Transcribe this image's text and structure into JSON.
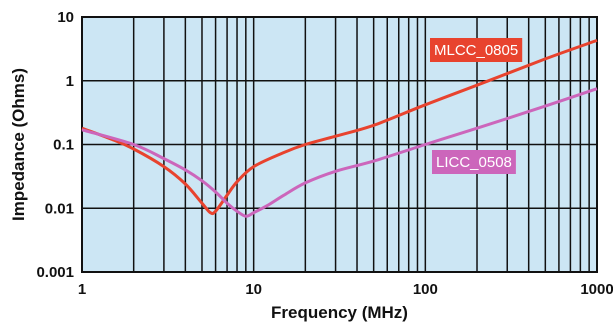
{
  "chart_data": {
    "type": "line",
    "title": "",
    "xlabel": "Frequency (MHz)",
    "ylabel": "Impedance  (Ohms)",
    "xscale": "log",
    "yscale": "log",
    "xlim": [
      1,
      1000
    ],
    "ylim": [
      0.001,
      10
    ],
    "x_ticks": [
      "1",
      "10",
      "100",
      "1000"
    ],
    "y_ticks": [
      "0.001",
      "0.01",
      "0.1",
      "1",
      "10"
    ],
    "grid": true,
    "background": "#cce6f4",
    "series": [
      {
        "name": "MLCC_0805",
        "color": "#e8432e",
        "label_box_color": "#e8432e",
        "points": [
          [
            1,
            0.18
          ],
          [
            1.5,
            0.12
          ],
          [
            2,
            0.085
          ],
          [
            3,
            0.045
          ],
          [
            4,
            0.024
          ],
          [
            5,
            0.012
          ],
          [
            5.6,
            0.0085
          ],
          [
            6,
            0.009
          ],
          [
            7,
            0.016
          ],
          [
            8,
            0.026
          ],
          [
            10,
            0.045
          ],
          [
            15,
            0.075
          ],
          [
            20,
            0.1
          ],
          [
            30,
            0.135
          ],
          [
            50,
            0.2
          ],
          [
            100,
            0.42
          ],
          [
            200,
            0.85
          ],
          [
            500,
            2.2
          ],
          [
            1000,
            4.3
          ]
        ]
      },
      {
        "name": "LICC_0508",
        "color": "#cc66bb",
        "label_box_color": "#cc66bb",
        "points": [
          [
            1,
            0.17
          ],
          [
            2,
            0.1
          ],
          [
            3,
            0.06
          ],
          [
            4,
            0.04
          ],
          [
            5,
            0.027
          ],
          [
            6,
            0.018
          ],
          [
            7,
            0.012
          ],
          [
            8,
            0.009
          ],
          [
            9,
            0.0075
          ],
          [
            10,
            0.0085
          ],
          [
            12,
            0.011
          ],
          [
            15,
            0.016
          ],
          [
            20,
            0.025
          ],
          [
            30,
            0.038
          ],
          [
            50,
            0.055
          ],
          [
            100,
            0.1
          ],
          [
            200,
            0.18
          ],
          [
            500,
            0.4
          ],
          [
            1000,
            0.75
          ]
        ]
      }
    ]
  }
}
